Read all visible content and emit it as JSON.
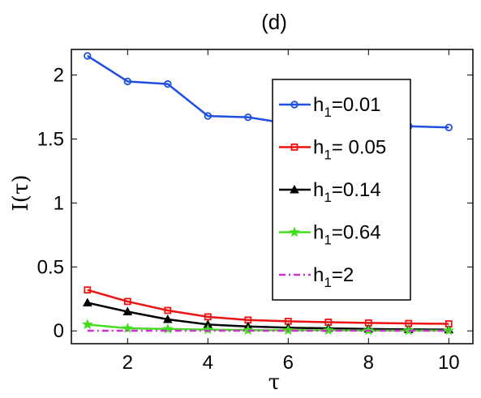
{
  "chart_data": {
    "type": "line",
    "title": "(d)",
    "xlabel": "τ",
    "ylabel": "I(τ)",
    "xlim": [
      0.6,
      10.6
    ],
    "ylim": [
      -0.1,
      2.2
    ],
    "xticks": [
      2,
      4,
      6,
      8,
      10
    ],
    "xtick_labels": [
      "2",
      "4",
      "6",
      "8",
      "10"
    ],
    "yticks": [
      0,
      0.5,
      1,
      1.5,
      2
    ],
    "ytick_labels": [
      "0",
      "0.5",
      "1",
      "1.5",
      "2"
    ],
    "legend_position": "upper-right",
    "x": [
      1,
      2,
      3,
      4,
      5,
      6,
      7,
      8,
      9,
      10
    ],
    "series": [
      {
        "name": "h",
        "sub": "1",
        "suffix": "=0.01",
        "color": "#1f4fe0",
        "marker": "circle",
        "dash": "solid",
        "values": [
          2.15,
          1.95,
          1.93,
          1.68,
          1.67,
          1.62,
          1.62,
          1.62,
          1.6,
          1.59
        ]
      },
      {
        "name": "h",
        "sub": "1",
        "suffix": "= 0.05",
        "color": "#ee1111",
        "marker": "square",
        "dash": "solid",
        "values": [
          0.32,
          0.23,
          0.16,
          0.11,
          0.085,
          0.075,
          0.068,
          0.062,
          0.058,
          0.055
        ]
      },
      {
        "name": "h",
        "sub": "1",
        "suffix": "=0.14",
        "color": "#000000",
        "marker": "triangle",
        "dash": "solid",
        "values": [
          0.22,
          0.15,
          0.09,
          0.05,
          0.035,
          0.025,
          0.02,
          0.015,
          0.012,
          0.01
        ]
      },
      {
        "name": "h",
        "sub": "1",
        "suffix": "=0.64",
        "color": "#44dd22",
        "marker": "star",
        "dash": "solid",
        "values": [
          0.05,
          0.02,
          0.015,
          0.01,
          0.005,
          0.005,
          0.005,
          0.003,
          0.003,
          0.003
        ]
      },
      {
        "name": "h",
        "sub": "1",
        "suffix": "=2",
        "color": "#cc33cc",
        "marker": "none",
        "dash": "dashdot",
        "values": [
          0.001,
          0.001,
          0.001,
          0.001,
          0.001,
          0.001,
          0.001,
          0.001,
          0.001,
          0.001
        ]
      }
    ]
  }
}
